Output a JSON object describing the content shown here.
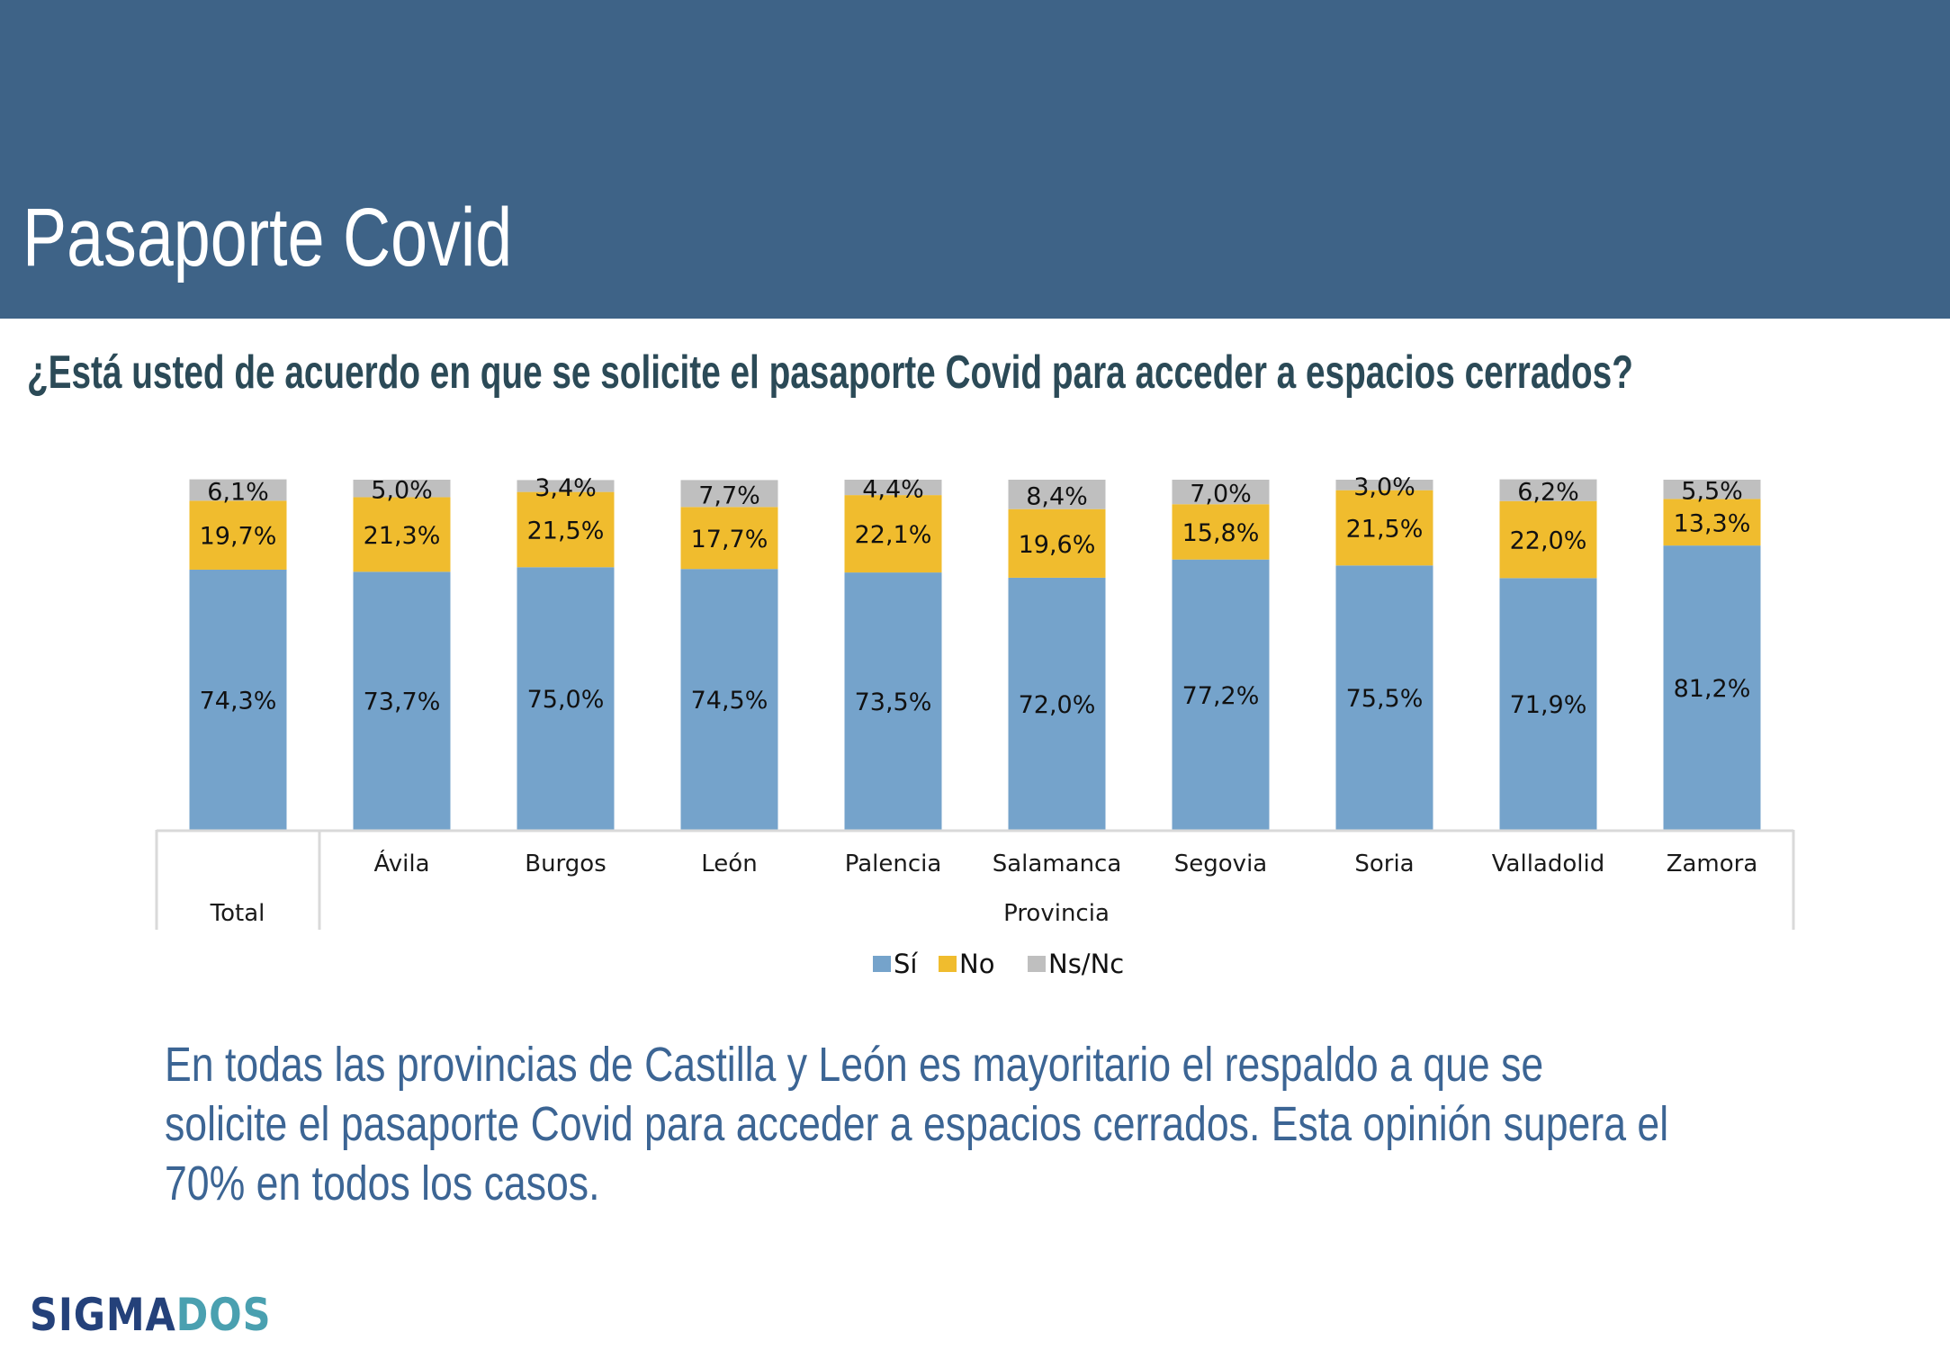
{
  "header": {
    "title": "Pasaporte Covid"
  },
  "question": "¿Está usted de acuerdo en que se solicite el pasaporte Covid para acceder a espacios cerrados?",
  "chart_data": {
    "type": "bar",
    "stacked": true,
    "title": "¿Está usted de acuerdo en que se solicite el pasaporte Covid para acceder a espacios cerrados?",
    "categories": [
      "Total",
      "Ávila",
      "Burgos",
      "León",
      "Palencia",
      "Salamanca",
      "Segovia",
      "Soria",
      "Valladolid",
      "Zamora"
    ],
    "category_groups": [
      {
        "label": "Total",
        "members": [
          "Total"
        ]
      },
      {
        "label": "Provincia",
        "members": [
          "Ávila",
          "Burgos",
          "León",
          "Palencia",
          "Salamanca",
          "Segovia",
          "Soria",
          "Valladolid",
          "Zamora"
        ]
      }
    ],
    "series": [
      {
        "name": "Sí",
        "color": "#75a3cb",
        "values": [
          74.3,
          73.7,
          75.0,
          74.5,
          73.5,
          72.0,
          77.2,
          75.5,
          71.9,
          81.2
        ],
        "labels": [
          "74,3%",
          "73,7%",
          "75,0%",
          "74,5%",
          "73,5%",
          "72,0%",
          "77,2%",
          "75,5%",
          "71,9%",
          "81,2%"
        ]
      },
      {
        "name": "No",
        "color": "#f0bc2e",
        "values": [
          19.7,
          21.3,
          21.5,
          17.7,
          22.1,
          19.6,
          15.8,
          21.5,
          22.0,
          13.3
        ],
        "labels": [
          "19,7%",
          "21,3%",
          "21,5%",
          "17,7%",
          "22,1%",
          "19,6%",
          "15,8%",
          "21,5%",
          "22,0%",
          "13,3%"
        ]
      },
      {
        "name": "Ns/Nc",
        "color": "#bfbfbf",
        "values": [
          6.1,
          5.0,
          3.4,
          7.7,
          4.4,
          8.4,
          7.0,
          3.0,
          6.2,
          5.5
        ],
        "labels": [
          "6,1%",
          "5,0%",
          "3,4%",
          "7,7%",
          "4,4%",
          "8,4%",
          "7,0%",
          "3,0%",
          "6,2%",
          "5,5%"
        ]
      }
    ],
    "ylim": [
      0,
      100
    ],
    "xlabel": "",
    "ylabel": "",
    "grid": false,
    "legend_position": "bottom",
    "legend": [
      "Sí",
      "No",
      "Ns/Nc"
    ]
  },
  "summary": {
    "lines": [
      "En todas las provincias de Castilla y León es mayoritario el respaldo a que se",
      "solicite el pasaporte Covid para acceder a espacios cerrados. Esta opinión supera el",
      "70% en todos los casos."
    ]
  },
  "logo": {
    "part1": "SIGMA",
    "part2": "DOS",
    "color1": "#24417a",
    "color2": "#4aa0b0"
  }
}
